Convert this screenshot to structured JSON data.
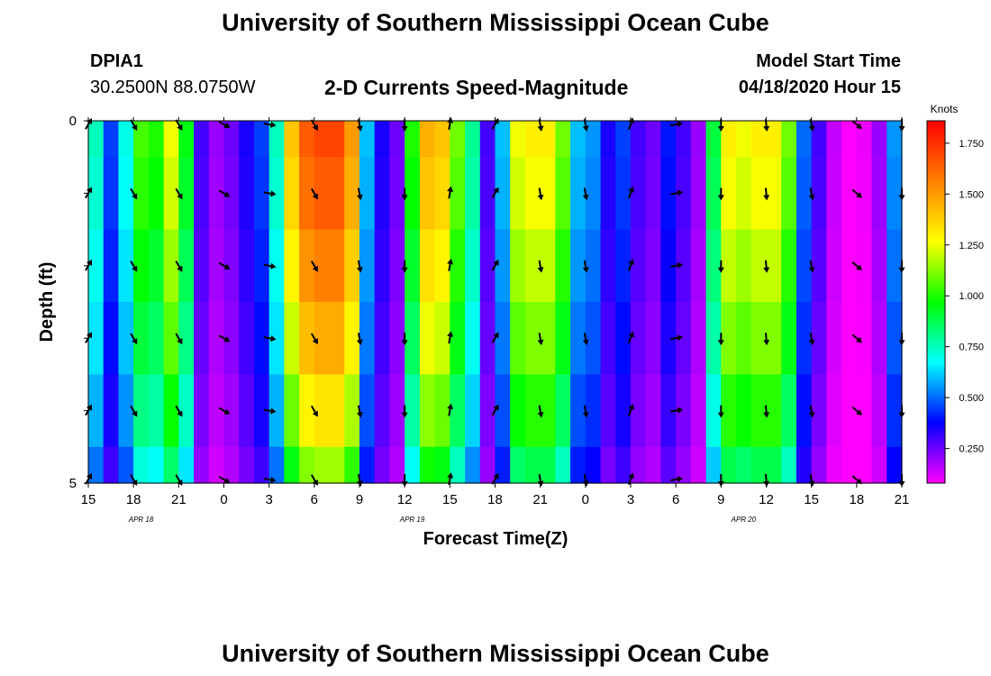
{
  "header": {
    "title": "University of Southern Mississippi Ocean Cube",
    "station": "DPIA1",
    "coordinates": "30.2500N 88.0750W",
    "subtitle": "2-D Currents Speed-Magnitude",
    "model_start_label": "Model Start Time",
    "model_start_value": "04/18/2020 Hour 15"
  },
  "footer": {
    "title": "University of Southern Mississippi Ocean Cube"
  },
  "chart_data": {
    "type": "heatmap",
    "title": "2-D Currents Speed-Magnitude",
    "xlabel": "Forecast Time(Z)",
    "ylabel": "Depth (ft)",
    "xlim": [
      0,
      54
    ],
    "ylim": [
      0,
      5
    ],
    "x_tick_labels": [
      "15",
      "18",
      "21",
      "0",
      "3",
      "6",
      "9",
      "12",
      "15",
      "18",
      "21",
      "0",
      "3",
      "6",
      "9",
      "12",
      "15",
      "18",
      "21"
    ],
    "x_date_labels": [
      {
        "label": "APR 18",
        "hour_index": 3.5
      },
      {
        "label": "APR 19",
        "hour_index": 21.5
      },
      {
        "label": "APR 20",
        "hour_index": 43.5
      }
    ],
    "y_tick_labels": [
      "0",
      "5"
    ],
    "y_ticks": [
      0,
      1,
      2,
      3,
      4,
      5
    ],
    "colorbar": {
      "unit": "Knots",
      "min": 0.08,
      "max": 1.86,
      "ticks": [
        0.25,
        0.5,
        0.75,
        1.0,
        1.25,
        1.5,
        1.75
      ],
      "tick_labels": [
        "0.250",
        "0.500",
        "0.750",
        "1.000",
        "1.250",
        "1.500",
        "1.750"
      ],
      "colors": [
        "#ff00ff",
        "#8000ff",
        "#0000ff",
        "#0080ff",
        "#00ffff",
        "#00ff80",
        "#00ff00",
        "#80ff00",
        "#ffff00",
        "#ffc000",
        "#ff8000",
        "#ff4000",
        "#ff0000"
      ]
    },
    "depth_bin_edges_ft": [
      0,
      0.5,
      1.5,
      2.5,
      3.5,
      4.5,
      5
    ],
    "speed_knots_surface": [
      0.75,
      0.45,
      0.7,
      1.05,
      1.0,
      1.25,
      0.95,
      0.3,
      0.2,
      0.25,
      0.35,
      0.45,
      0.75,
      1.4,
      1.65,
      1.7,
      1.7,
      1.5,
      0.6,
      0.35,
      0.25,
      1.0,
      1.45,
      1.4,
      1.1,
      0.8,
      0.3,
      0.6,
      1.25,
      1.3,
      1.3,
      1.1,
      0.6,
      0.55,
      0.35,
      0.45,
      0.3,
      0.25,
      0.4,
      0.3,
      0.2,
      0.9,
      1.3,
      1.25,
      1.3,
      1.3,
      1.1,
      0.5,
      0.3,
      0.15,
      0.08,
      0.1,
      0.2,
      0.55
    ],
    "depth_factors": [
      1.0,
      0.97,
      0.92,
      0.86,
      0.78,
      0.68
    ],
    "direction_deg_by_hour": [
      {
        "h": 0,
        "dir": 30
      },
      {
        "h": 3,
        "dir": 150
      },
      {
        "h": 6,
        "dir": 150
      },
      {
        "h": 9,
        "dir": 120
      },
      {
        "h": 12,
        "dir": 100
      },
      {
        "h": 15,
        "dir": 150
      },
      {
        "h": 18,
        "dir": 170
      },
      {
        "h": 21,
        "dir": 180
      },
      {
        "h": 24,
        "dir": 10
      },
      {
        "h": 27,
        "dir": 30
      },
      {
        "h": 30,
        "dir": 170
      },
      {
        "h": 33,
        "dir": 170
      },
      {
        "h": 36,
        "dir": 20
      },
      {
        "h": 39,
        "dir": 80
      },
      {
        "h": 42,
        "dir": 180
      },
      {
        "h": 45,
        "dir": 175
      },
      {
        "h": 48,
        "dir": 170
      },
      {
        "h": 51,
        "dir": 130
      },
      {
        "h": 54,
        "dir": 180
      }
    ],
    "vector_rows_depth_ft": [
      0.05,
      1.0,
      2.0,
      3.0,
      4.0,
      4.95
    ]
  }
}
